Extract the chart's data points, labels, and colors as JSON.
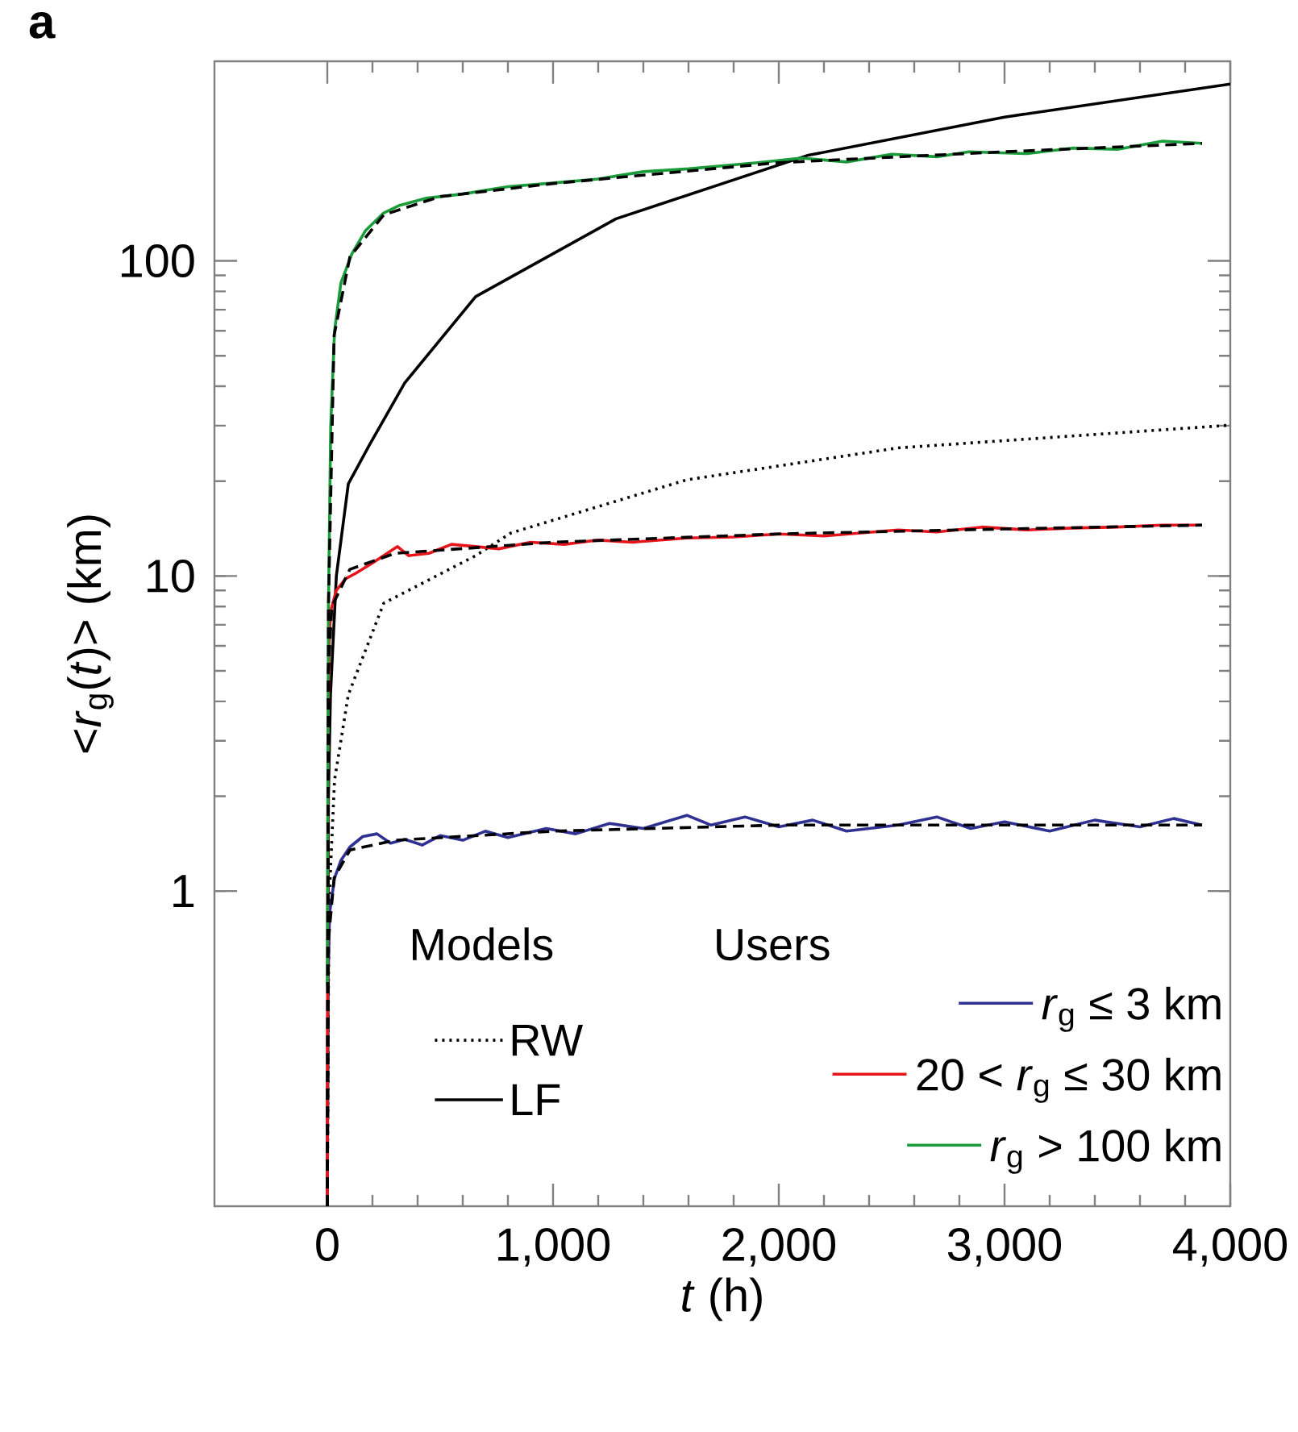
{
  "chart_data": {
    "type": "line",
    "xlabel": "*t* (h)",
    "ylabel": "<*r*$_{g}$(*t*)> (km)",
    "annotations": [
      "a",
      "Models",
      "Users"
    ],
    "log": "y",
    "xlim": [
      -500,
      4000
    ],
    "ylim": [
      0.1,
      430
    ],
    "xticks": [
      0,
      {
        "value": 1000,
        "label": "1,000"
      },
      {
        "value": 2000,
        "label": "2,000"
      },
      {
        "value": 3000,
        "label": "3,000"
      },
      {
        "value": 4000,
        "label": "4,000"
      }
    ],
    "yticks": [
      1,
      10,
      100
    ],
    "legend": "bottom",
    "grid": false,
    "marker": "none",
    "series": [
      {
        "name": "RW",
        "color": "#000000",
        "line_style": "dotted",
        "x": [
          0,
          7,
          32,
          93,
          250,
          657,
          814,
          1593,
          2529,
          4000
        ],
        "values": [
          0.1,
          0.9,
          2.25,
          4.2,
          8.2,
          11.6,
          13.7,
          20.2,
          25.5,
          30.1
        ]
      },
      {
        "name": "LF",
        "color": "#000000",
        "line_style": "solid",
        "x": [
          0,
          5,
          14,
          40,
          93,
          186,
          343,
          657,
          1279,
          2126,
          3000,
          4000
        ],
        "values": [
          0.1,
          2,
          4.2,
          10,
          19.6,
          26,
          41,
          77,
          136,
          216,
          286,
          364
        ]
      },
      {
        "name": "*r*$_{g}$ ≤ 3 km",
        "color": "#2e3192",
        "line_style": "solid",
        "x": [
          0,
          3,
          10,
          32,
          60,
          100,
          157,
          220,
          280,
          343,
          420,
          500,
          600,
          700,
          800,
          970,
          1100,
          1250,
          1400,
          1593,
          1700,
          1850,
          2000,
          2150,
          2300,
          2529,
          2700,
          2850,
          3000,
          3200,
          3400,
          3600,
          3750,
          3875
        ],
        "values": [
          0.1,
          0.5,
          0.85,
          1.1,
          1.25,
          1.38,
          1.49,
          1.52,
          1.42,
          1.46,
          1.4,
          1.5,
          1.45,
          1.55,
          1.48,
          1.58,
          1.52,
          1.64,
          1.58,
          1.74,
          1.62,
          1.72,
          1.6,
          1.68,
          1.55,
          1.62,
          1.72,
          1.58,
          1.66,
          1.55,
          1.68,
          1.6,
          1.7,
          1.62
        ]
      },
      {
        "name": "20 < *r*$_{g}$ ≤ 30 km",
        "color": "#e8141b",
        "line_style": "solid",
        "x": [
          0,
          3,
          8,
          14,
          40,
          80,
          126,
          200,
          311,
          360,
          450,
          550,
          657,
          760,
          900,
          1050,
          1200,
          1350,
          1593,
          1800,
          2000,
          2200,
          2529,
          2700,
          2900,
          3100,
          3300,
          3500,
          3700,
          3875
        ],
        "values": [
          0.1,
          3,
          6,
          7.7,
          9,
          9.8,
          10.2,
          11,
          12.4,
          11.6,
          11.8,
          12.6,
          12.4,
          12.2,
          12.8,
          12.6,
          13,
          12.8,
          13.2,
          13.3,
          13.6,
          13.4,
          14,
          13.8,
          14.3,
          14,
          14.2,
          14.3,
          14.5,
          14.5
        ]
      },
      {
        "name": "*r*$_{g}$ > 100 km",
        "color": "#1a9c3a",
        "line_style": "solid",
        "x": [
          0,
          5,
          15,
          32,
          60,
          108,
          170,
          250,
          320,
          436,
          600,
          800,
          970,
          1200,
          1400,
          1600,
          1907,
          2100,
          2300,
          2500,
          2700,
          2843,
          3100,
          3300,
          3500,
          3700,
          3875
        ],
        "values": [
          0.5,
          8,
          30,
          60,
          85,
          105,
          125,
          142,
          150,
          158,
          163,
          172,
          176,
          182,
          192,
          196,
          205,
          212,
          206,
          218,
          214,
          222,
          219,
          228,
          226,
          240,
          236
        ]
      },
      {
        "color": "#000000",
        "line_style": "dashed",
        "x": [
          0,
          5,
          30,
          100,
          300,
          1000,
          2000,
          3000,
          3875
        ],
        "values": [
          0.1,
          0.7,
          1.1,
          1.35,
          1.45,
          1.55,
          1.62,
          1.62,
          1.62
        ]
      },
      {
        "color": "#000000",
        "line_style": "dashed",
        "x": [
          0,
          5,
          20,
          100,
          300,
          1000,
          2000,
          3000,
          3875
        ],
        "values": [
          0.1,
          5,
          8,
          10.5,
          11.8,
          12.8,
          13.6,
          14.1,
          14.5
        ]
      },
      {
        "color": "#000000",
        "line_style": "dashed",
        "x": [
          0,
          5,
          30,
          100,
          250,
          500,
          1000,
          2000,
          3000,
          3875
        ],
        "values": [
          0.1,
          8,
          58,
          103,
          140,
          160,
          176,
          205,
          222,
          236
        ]
      }
    ]
  }
}
